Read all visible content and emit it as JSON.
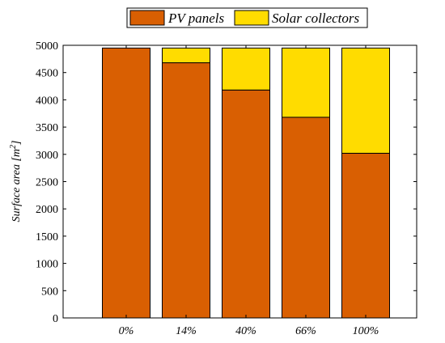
{
  "chart_data": {
    "type": "bar",
    "stacked": true,
    "categories": [
      "0%",
      "14%",
      "40%",
      "66%",
      "100%"
    ],
    "series": [
      {
        "name": "PV panels",
        "values": [
          4950,
          4680,
          4180,
          3680,
          3020
        ],
        "color": "#d95f02"
      },
      {
        "name": "Solar collectors",
        "values": [
          0,
          270,
          770,
          1270,
          1930
        ],
        "color": "#ffdc00"
      }
    ],
    "ylabel": "Surface area [m²]",
    "ylabel_main": "Surface area [m",
    "ylabel_sup": "2",
    "ylabel_end": "]",
    "ylim": [
      0,
      5000
    ],
    "yticks": [
      0,
      500,
      1000,
      1500,
      2000,
      2500,
      3000,
      3500,
      4000,
      4500,
      5000
    ],
    "grid": false,
    "legend_position": "top-center"
  }
}
